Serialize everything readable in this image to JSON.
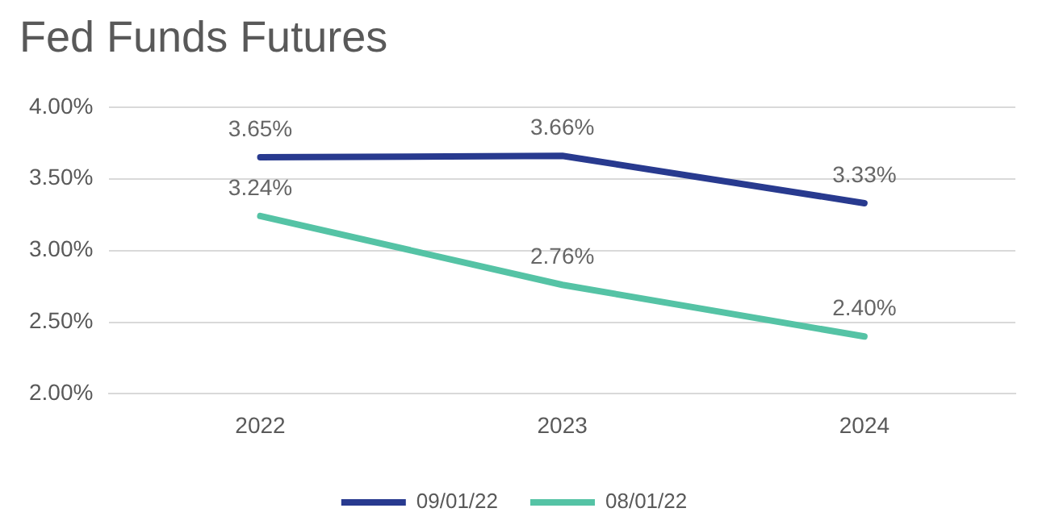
{
  "chart_data": {
    "type": "line",
    "title": "Fed Funds Futures",
    "categories": [
      "2022",
      "2023",
      "2024"
    ],
    "series": [
      {
        "name": "09/01/22",
        "color": "#283a8f",
        "values": [
          3.65,
          3.66,
          3.33
        ],
        "value_labels": [
          "3.65%",
          "3.66%",
          "3.33%"
        ]
      },
      {
        "name": "08/01/22",
        "color": "#55c3a5",
        "values": [
          3.24,
          2.76,
          2.4
        ],
        "value_labels": [
          "3.24%",
          "2.76%",
          "2.40%"
        ]
      }
    ],
    "ylim": [
      2,
      4
    ],
    "yticks": [
      {
        "value": 2,
        "label": "2.00%"
      },
      {
        "value": 2.5,
        "label": "2.50%"
      },
      {
        "value": 3,
        "label": "3.00%"
      },
      {
        "value": 3.5,
        "label": "3.50%"
      },
      {
        "value": 4,
        "label": "4.00%"
      }
    ],
    "grid": "y",
    "legend": "bottom",
    "marker": "none",
    "line_style": "solid"
  }
}
